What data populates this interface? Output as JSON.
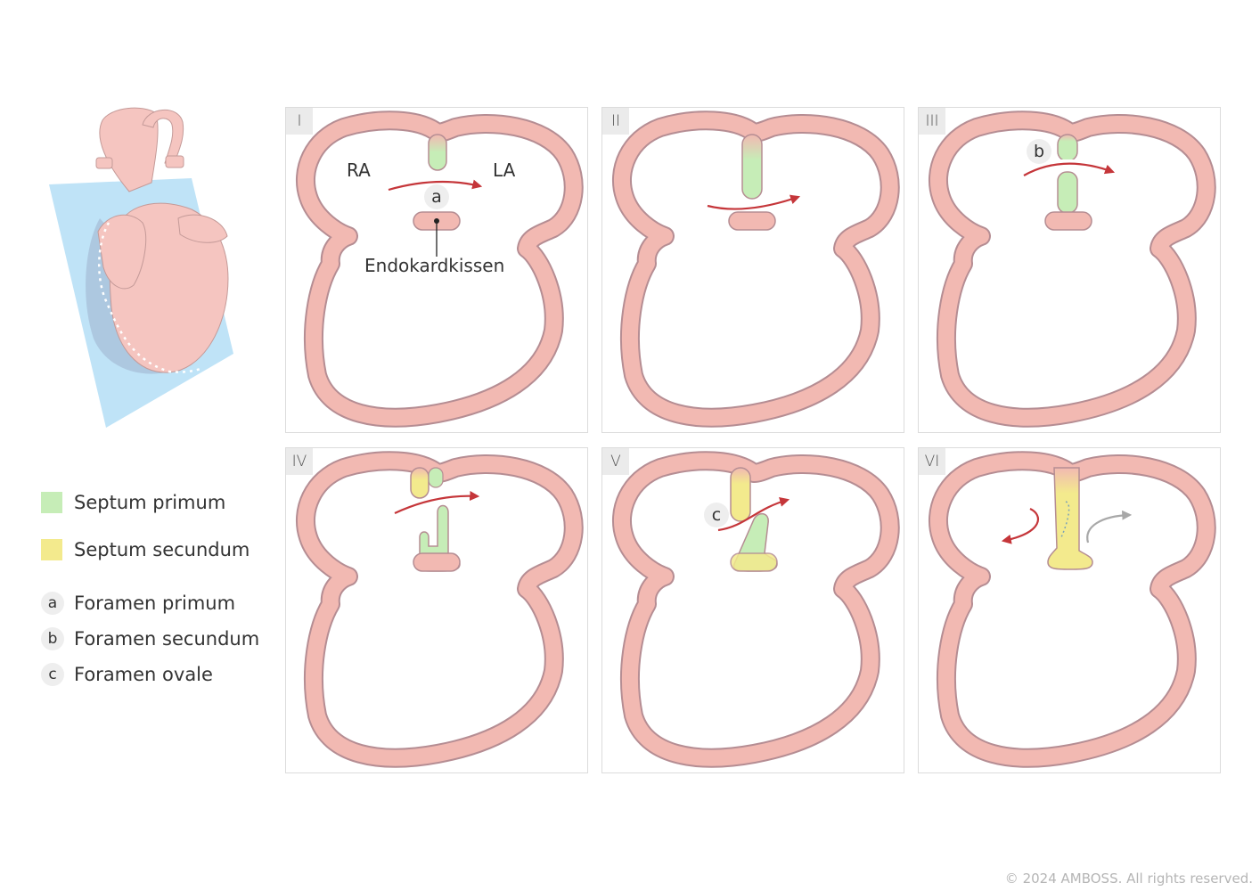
{
  "panels": [
    {
      "label": "I"
    },
    {
      "label": "II"
    },
    {
      "label": "III"
    },
    {
      "label": "IV"
    },
    {
      "label": "V"
    },
    {
      "label": "VI"
    }
  ],
  "annotations": {
    "ra": "RA",
    "la": "LA",
    "a": "a",
    "b": "b",
    "c": "c",
    "endocardial_cushion": "Endokardkissen"
  },
  "legend": [
    {
      "type": "swatch",
      "color": "#c6edb7",
      "label": "Septum primum"
    },
    {
      "type": "swatch",
      "color": "#f3ea8d",
      "label": "Septum secundum"
    },
    {
      "type": "letter",
      "letter": "a",
      "label": "Foramen primum"
    },
    {
      "type": "letter",
      "letter": "b",
      "label": "Foramen secundum"
    },
    {
      "type": "letter",
      "letter": "c",
      "label": "Foramen ovale"
    }
  ],
  "colors": {
    "wall_fill": "#f2b9b2",
    "wall_stroke": "#b58d93",
    "septum_primum": "#c6edb7",
    "septum_secundum": "#f3ea8d",
    "arrow_red": "#c5363a",
    "arrow_gray": "#a8a8a8",
    "plane_blue": "#bfe3f7"
  },
  "copyright": "© 2024 AMBOSS. All rights reserved."
}
